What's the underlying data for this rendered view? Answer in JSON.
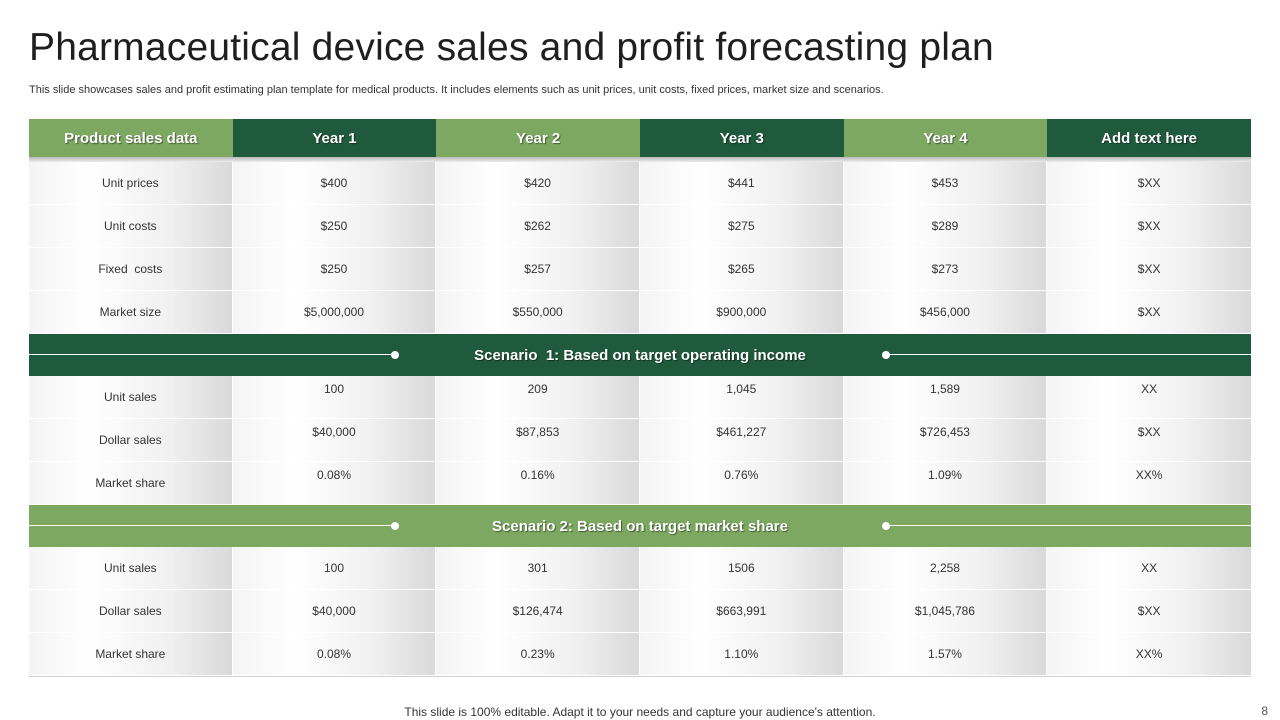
{
  "title": "Pharmaceutical device sales and profit forecasting plan",
  "subtitle": "This slide showcases sales and profit estimating plan template for medical products. It includes elements such as unit prices, unit costs, fixed prices, market size and scenarios.",
  "colors": {
    "dark_green": "#1f5a3c",
    "light_green": "#7da862"
  },
  "table": {
    "headers": [
      "Product sales data",
      "Year 1",
      "Year 2",
      "Year 3",
      "Year 4",
      "Add text here"
    ],
    "product_rows": [
      {
        "label": "Unit prices",
        "values": [
          "$400",
          "$420",
          "$441",
          "$453",
          "$XX"
        ]
      },
      {
        "label": "Unit costs",
        "values": [
          "$250",
          "$262",
          "$275",
          "$289",
          "$XX"
        ]
      },
      {
        "label": "Fixed  costs",
        "values": [
          "$250",
          "$257",
          "$265",
          "$273",
          "$XX"
        ]
      },
      {
        "label": "Market size",
        "values": [
          "$5,000,000",
          "$550,000",
          "$900,000",
          "$456,000",
          "$XX"
        ]
      }
    ],
    "scenario1": {
      "title": "Scenario  1: Based on target operating income",
      "rows": [
        {
          "label": "Unit sales",
          "values": [
            "100",
            "209",
            "1,045",
            "1,589",
            "XX"
          ]
        },
        {
          "label": "Dollar sales",
          "values": [
            "$40,000",
            "$87,853",
            "$461,227",
            "$726,453",
            "$XX"
          ]
        },
        {
          "label": "Market share",
          "values": [
            "0.08%",
            "0.16%",
            "0.76%",
            "1.09%",
            "XX%"
          ]
        }
      ]
    },
    "scenario2": {
      "title": "Scenario 2: Based on target market share",
      "rows": [
        {
          "label": "Unit sales",
          "values": [
            "100",
            "301",
            "1506",
            "2,258",
            "XX"
          ]
        },
        {
          "label": "Dollar sales",
          "values": [
            "$40,000",
            "$126,474",
            "$663,991",
            "$1,045,786",
            "$XX"
          ]
        },
        {
          "label": "Market share",
          "values": [
            "0.08%",
            "0.23%",
            "1.10%",
            "1.57%",
            "XX%"
          ]
        }
      ]
    }
  },
  "footer": "This slide is 100% editable. Adapt it to your needs and capture your audience's attention.",
  "page_number": "8"
}
